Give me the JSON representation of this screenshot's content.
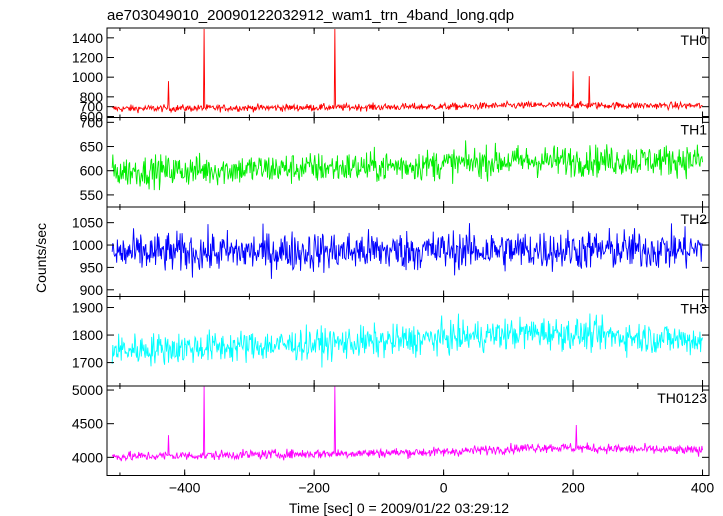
{
  "chart_data": {
    "type": "line",
    "title": "ae703049010_20090122032912_wam1_trn_4band_long.qdp",
    "xlabel": "Time [sec] 0 = 2009/01/22 03:29:12",
    "ylabel": "Counts/sec",
    "xlim": [
      -520,
      410
    ],
    "xticks": [
      -400,
      -200,
      0,
      200,
      400
    ],
    "xtick_labels": [
      "−400",
      "−200",
      "0",
      "200",
      "400"
    ],
    "x_start": -512,
    "x_end": 400,
    "x_step": 1,
    "series": [
      {
        "name": "TH0",
        "color": "#ff0000",
        "ylim": [
          590,
          1500
        ],
        "yticks": [
          600,
          700,
          800,
          1000,
          1200,
          1400
        ],
        "baseline": 680,
        "noise": 28,
        "trend": [
          [
            -512,
            680
          ],
          [
            0,
            700
          ],
          [
            140,
            715
          ],
          [
            400,
            710
          ]
        ],
        "spikes": [
          [
            -425,
            960
          ],
          [
            -370,
            1490
          ],
          [
            -168,
            1490
          ],
          [
            200,
            1060
          ],
          [
            225,
            1010
          ]
        ]
      },
      {
        "name": "TH1",
        "color": "#00ee00",
        "ylim": [
          525,
          710
        ],
        "yticks": [
          550,
          600,
          650,
          700
        ],
        "baseline": 605,
        "noise": 25,
        "trend": [
          [
            -512,
            598
          ],
          [
            -100,
            608
          ],
          [
            100,
            620
          ],
          [
            400,
            622
          ]
        ],
        "spikes": []
      },
      {
        "name": "TH2",
        "color": "#0000ff",
        "ylim": [
          885,
          1085
        ],
        "yticks": [
          900,
          950,
          1000,
          1050
        ],
        "baseline": 985,
        "noise": 35,
        "trend": [
          [
            -512,
            982
          ],
          [
            0,
            988
          ],
          [
            400,
            990
          ]
        ],
        "spikes": []
      },
      {
        "name": "TH3",
        "color": "#00ffff",
        "ylim": [
          1615,
          1940
        ],
        "yticks": [
          1700,
          1800,
          1900
        ],
        "baseline": 1760,
        "noise": 45,
        "trend": [
          [
            -512,
            1745
          ],
          [
            -100,
            1775
          ],
          [
            150,
            1810
          ],
          [
            400,
            1780
          ]
        ],
        "spikes": []
      },
      {
        "name": "TH0123",
        "color": "#ff00ff",
        "ylim": [
          3730,
          5060
        ],
        "yticks": [
          4000,
          4500,
          5000
        ],
        "baseline": 4020,
        "noise": 55,
        "trend": [
          [
            -512,
            4010
          ],
          [
            0,
            4080
          ],
          [
            150,
            4150
          ],
          [
            400,
            4100
          ]
        ],
        "spikes": [
          [
            -425,
            4330
          ],
          [
            -370,
            5050
          ],
          [
            -168,
            5050
          ],
          [
            205,
            4480
          ]
        ]
      }
    ]
  }
}
